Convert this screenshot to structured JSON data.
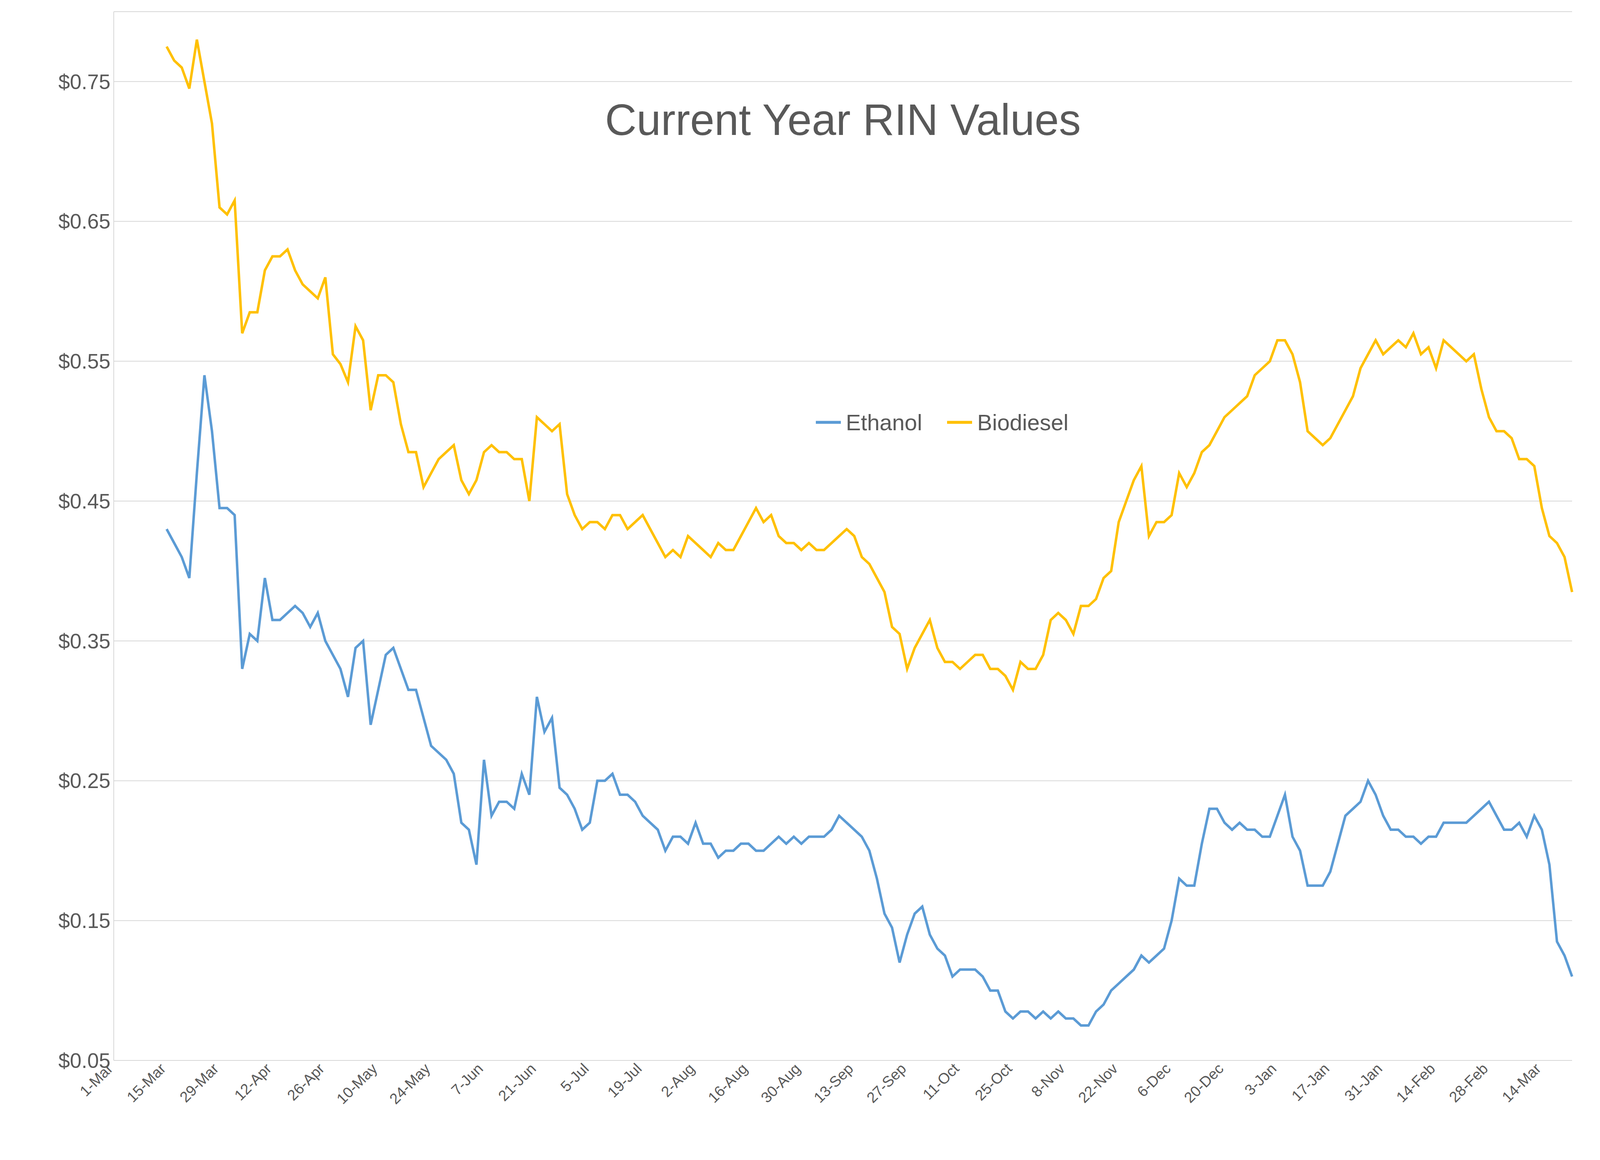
{
  "chart_data": {
    "type": "line",
    "title": "Current Year RIN Values",
    "categories": [
      "1-Mar",
      null,
      null,
      null,
      null,
      null,
      null,
      "15-Mar",
      null,
      null,
      null,
      null,
      null,
      null,
      "29-Mar",
      null,
      null,
      null,
      null,
      null,
      null,
      "12-Apr",
      null,
      null,
      null,
      null,
      null,
      null,
      "26-Apr",
      null,
      null,
      null,
      null,
      null,
      null,
      "10-May",
      null,
      null,
      null,
      null,
      null,
      null,
      "24-May",
      null,
      null,
      null,
      null,
      null,
      null,
      "7-Jun",
      null,
      null,
      null,
      null,
      null,
      null,
      "21-Jun",
      null,
      null,
      null,
      null,
      null,
      null,
      "5-Jul",
      null,
      null,
      null,
      null,
      null,
      null,
      "19-Jul",
      null,
      null,
      null,
      null,
      null,
      null,
      "2-Aug",
      null,
      null,
      null,
      null,
      null,
      null,
      "16-Aug",
      null,
      null,
      null,
      null,
      null,
      null,
      "30-Aug",
      null,
      null,
      null,
      null,
      null,
      null,
      "13-Sep",
      null,
      null,
      null,
      null,
      null,
      null,
      "27-Sep",
      null,
      null,
      null,
      null,
      null,
      null,
      "11-Oct",
      null,
      null,
      null,
      null,
      null,
      null,
      "25-Oct",
      null,
      null,
      null,
      null,
      null,
      null,
      "8-Nov",
      null,
      null,
      null,
      null,
      null,
      null,
      "22-Nov",
      null,
      null,
      null,
      null,
      null,
      null,
      "6-Dec",
      null,
      null,
      null,
      null,
      null,
      null,
      "20-Dec",
      null,
      null,
      null,
      null,
      null,
      null,
      "3-Jan",
      null,
      null,
      null,
      null,
      null,
      null,
      "17-Jan",
      null,
      null,
      null,
      null,
      null,
      null,
      "31-Jan",
      null,
      null,
      null,
      null,
      null,
      null,
      "14-Feb",
      null,
      null,
      null,
      null,
      null,
      null,
      "28-Feb",
      null,
      null,
      null,
      null,
      null,
      null,
      "14-Mar",
      null,
      null,
      null,
      null
    ],
    "series": [
      {
        "name": "Ethanol",
        "color": "#5b9bd5",
        "values": [
          null,
          null,
          null,
          null,
          null,
          null,
          null,
          0.43,
          0.42,
          0.41,
          0.395,
          0.47,
          0.54,
          0.5,
          0.445,
          0.445,
          0.44,
          0.33,
          0.355,
          0.35,
          0.395,
          0.365,
          0.365,
          0.37,
          0.375,
          0.37,
          0.36,
          0.37,
          0.35,
          0.34,
          0.33,
          0.31,
          0.345,
          0.35,
          0.29,
          0.315,
          0.34,
          0.345,
          0.33,
          0.315,
          0.315,
          0.295,
          0.275,
          0.27,
          0.265,
          0.255,
          0.22,
          0.215,
          0.19,
          0.265,
          0.225,
          0.235,
          0.235,
          0.23,
          0.255,
          0.24,
          0.31,
          0.285,
          0.295,
          0.245,
          0.24,
          0.23,
          0.215,
          0.22,
          0.25,
          0.25,
          0.255,
          0.24,
          0.24,
          0.235,
          0.225,
          0.22,
          0.215,
          0.2,
          0.21,
          0.21,
          0.205,
          0.22,
          0.205,
          0.205,
          0.195,
          0.2,
          0.2,
          0.205,
          0.205,
          0.2,
          0.2,
          0.205,
          0.21,
          0.205,
          0.21,
          0.205,
          0.21,
          0.21,
          0.21,
          0.215,
          0.225,
          0.22,
          0.215,
          0.21,
          0.2,
          0.18,
          0.155,
          0.145,
          0.12,
          0.14,
          0.155,
          0.16,
          0.14,
          0.13,
          0.125,
          0.11,
          0.115,
          0.115,
          0.115,
          0.11,
          0.1,
          0.1,
          0.085,
          0.08,
          0.085,
          0.085,
          0.08,
          0.085,
          0.08,
          0.085,
          0.08,
          0.08,
          0.075,
          0.075,
          0.085,
          0.09,
          0.1,
          0.105,
          0.11,
          0.115,
          0.125,
          0.12,
          0.125,
          0.13,
          0.15,
          0.18,
          0.175,
          0.175,
          0.205,
          0.23,
          0.23,
          0.22,
          0.215,
          0.22,
          0.215,
          0.215,
          0.21,
          0.21,
          0.225,
          0.24,
          0.21,
          0.2,
          0.175,
          0.175,
          0.175,
          0.185,
          0.205,
          0.225,
          0.23,
          0.235,
          0.25,
          0.24,
          0.225,
          0.215,
          0.215,
          0.21,
          0.21,
          0.205,
          0.21,
          0.21,
          0.22,
          0.22,
          0.22,
          0.22,
          0.225,
          0.23,
          0.235,
          0.225,
          0.215,
          0.215,
          0.22,
          0.21,
          0.225,
          0.215,
          0.19,
          0.135,
          0.125,
          0.11
        ]
      },
      {
        "name": "Biodiesel",
        "color": "#ffc000",
        "values": [
          null,
          null,
          null,
          null,
          null,
          null,
          null,
          0.775,
          0.765,
          0.76,
          0.745,
          0.78,
          0.75,
          0.72,
          0.66,
          0.655,
          0.665,
          0.57,
          0.585,
          0.585,
          0.615,
          0.625,
          0.625,
          0.63,
          0.615,
          0.605,
          0.6,
          0.595,
          0.61,
          0.555,
          0.548,
          0.535,
          0.575,
          0.565,
          0.515,
          0.54,
          0.54,
          0.535,
          0.505,
          0.485,
          0.485,
          0.46,
          0.47,
          0.48,
          0.485,
          0.49,
          0.465,
          0.455,
          0.465,
          0.485,
          0.49,
          0.485,
          0.485,
          0.48,
          0.48,
          0.45,
          0.51,
          0.505,
          0.5,
          0.505,
          0.455,
          0.44,
          0.43,
          0.435,
          0.435,
          0.43,
          0.44,
          0.44,
          0.43,
          0.435,
          0.44,
          0.43,
          0.42,
          0.41,
          0.415,
          0.41,
          0.425,
          0.42,
          0.415,
          0.41,
          0.42,
          0.415,
          0.415,
          0.425,
          0.435,
          0.445,
          0.435,
          0.44,
          0.425,
          0.42,
          0.42,
          0.415,
          0.42,
          0.415,
          0.415,
          0.42,
          0.425,
          0.43,
          0.425,
          0.41,
          0.405,
          0.395,
          0.385,
          0.36,
          0.355,
          0.33,
          0.345,
          0.355,
          0.365,
          0.345,
          0.335,
          0.335,
          0.33,
          0.335,
          0.34,
          0.34,
          0.33,
          0.33,
          0.325,
          0.315,
          0.335,
          0.33,
          0.33,
          0.34,
          0.365,
          0.37,
          0.365,
          0.355,
          0.375,
          0.375,
          0.38,
          0.395,
          0.4,
          0.435,
          0.45,
          0.465,
          0.475,
          0.425,
          0.435,
          0.435,
          0.44,
          0.47,
          0.46,
          0.47,
          0.485,
          0.49,
          0.5,
          0.51,
          0.515,
          0.52,
          0.525,
          0.54,
          0.545,
          0.55,
          0.565,
          0.565,
          0.555,
          0.535,
          0.5,
          0.495,
          0.49,
          0.495,
          0.505,
          0.515,
          0.525,
          0.545,
          0.555,
          0.565,
          0.555,
          0.56,
          0.565,
          0.56,
          0.57,
          0.555,
          0.56,
          0.545,
          0.565,
          0.56,
          0.555,
          0.55,
          0.555,
          0.53,
          0.51,
          0.5,
          0.5,
          0.495,
          0.48,
          0.48,
          0.475,
          0.445,
          0.425,
          0.42,
          0.41,
          0.385
        ]
      }
    ],
    "ylim": [
      0.05,
      0.8
    ],
    "yticks": [
      {
        "value": 0.05,
        "label": "$0.05"
      },
      {
        "value": 0.15,
        "label": "$0.15"
      },
      {
        "value": 0.25,
        "label": "$0.25"
      },
      {
        "value": 0.35,
        "label": "$0.35"
      },
      {
        "value": 0.45,
        "label": "$0.45"
      },
      {
        "value": 0.55,
        "label": "$0.55"
      },
      {
        "value": 0.65,
        "label": "$0.65"
      },
      {
        "value": 0.75,
        "label": "$0.75"
      }
    ],
    "grid": true,
    "legend": "center"
  }
}
